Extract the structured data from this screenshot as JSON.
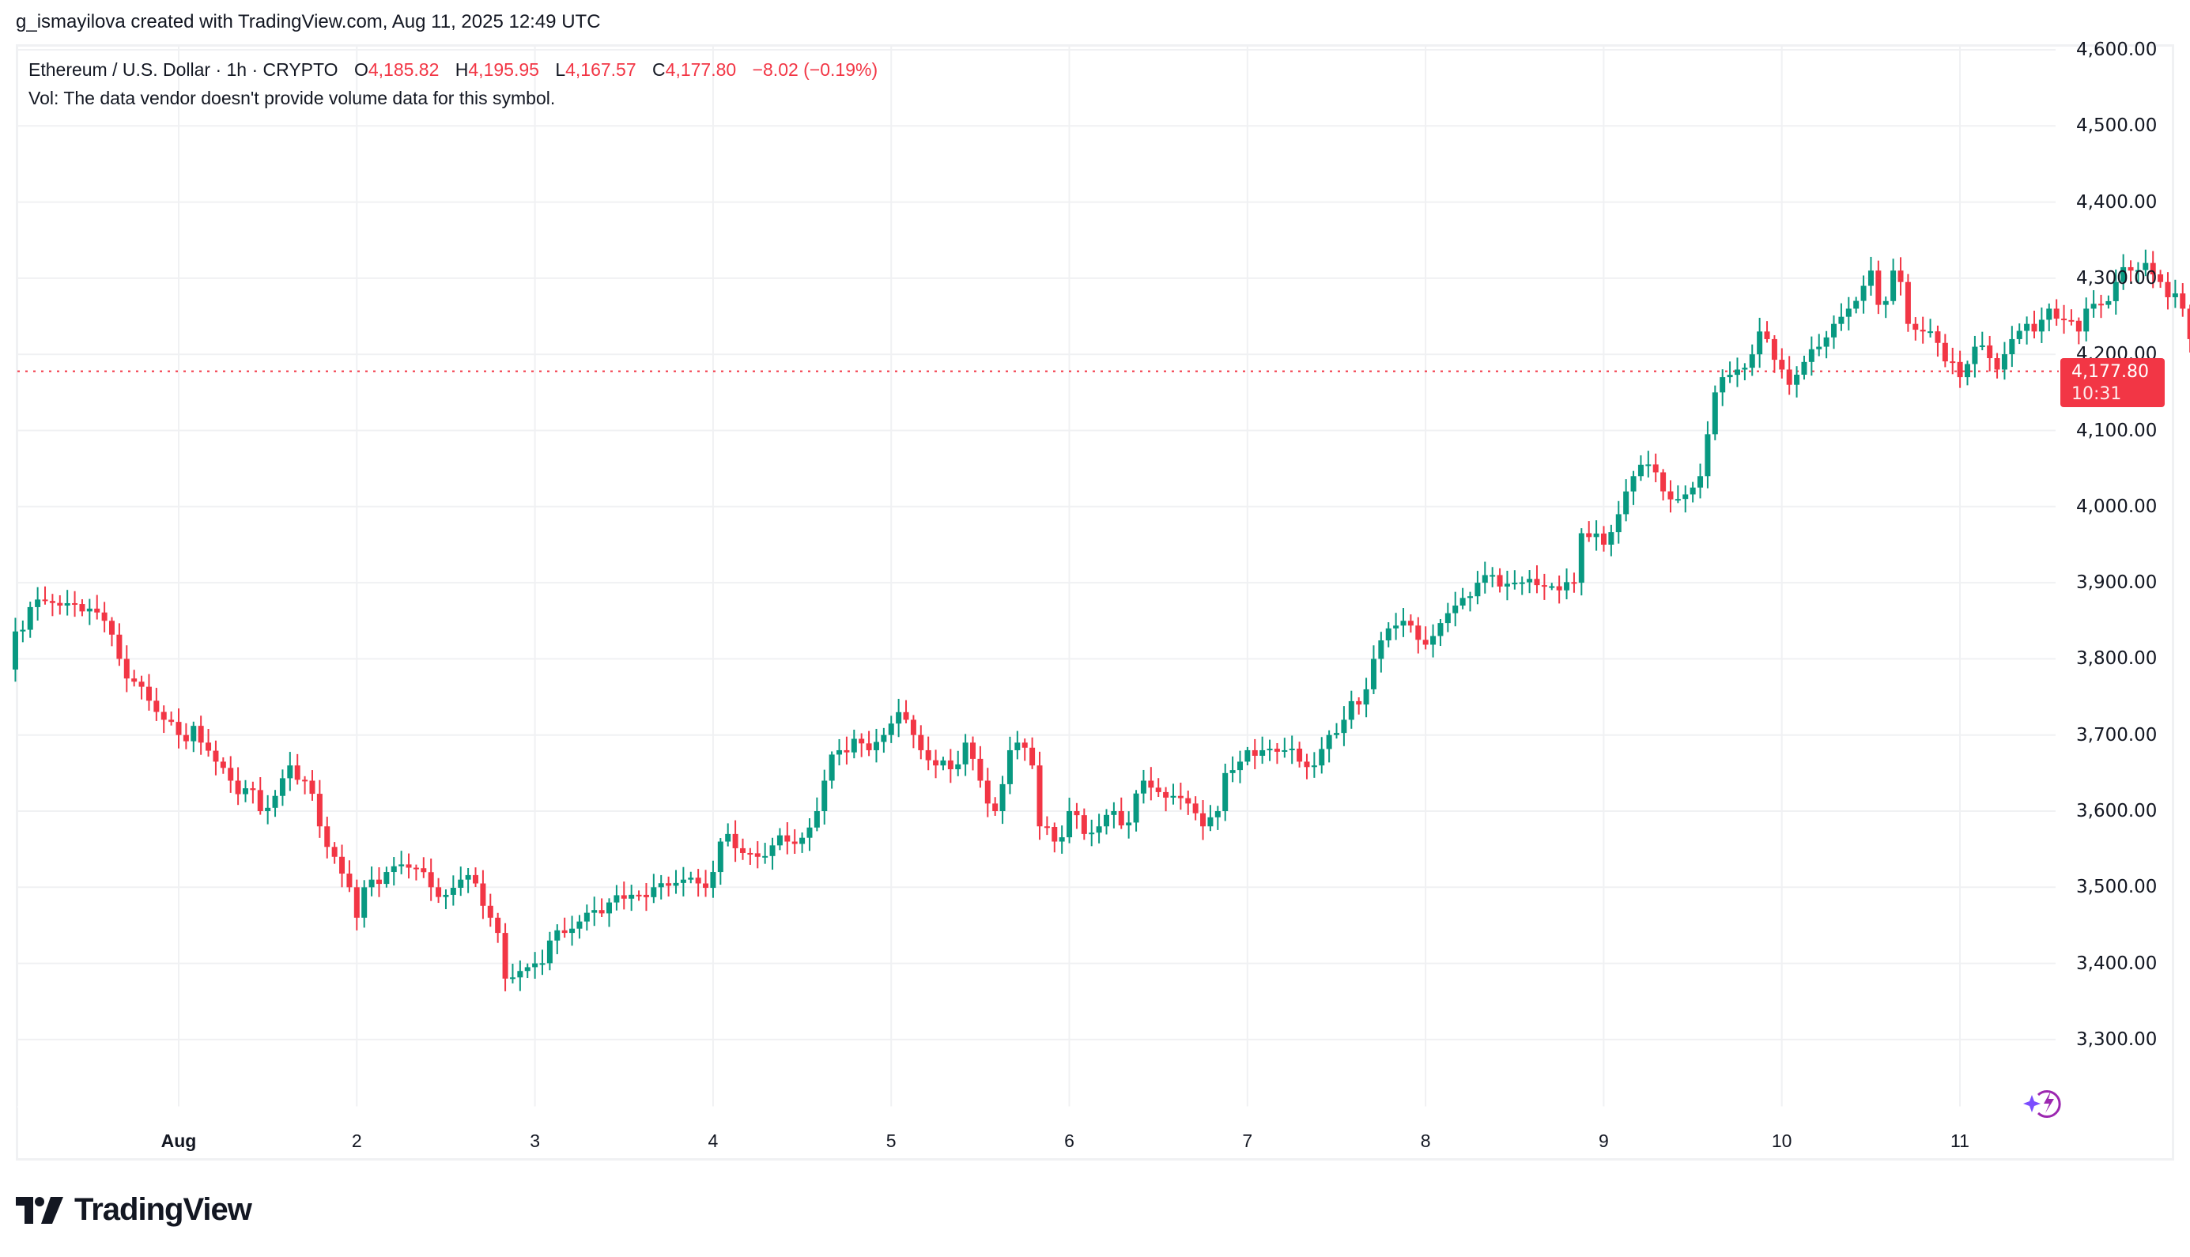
{
  "header": {
    "credit": "g_ismayilova created with TradingView.com, Aug 11, 2025 12:49 UTC"
  },
  "legend": {
    "symbol": "Ethereum / U.S. Dollar · 1h · CRYPTO",
    "open_label": "O",
    "open": "4,185.82",
    "high_label": "H",
    "high": "4,195.95",
    "low_label": "L",
    "low": "4,167.57",
    "close_label": "C",
    "close": "4,177.80",
    "change": "−8.02 (−0.19%)",
    "volume_note": "Vol: The data vendor doesn't provide volume data for this symbol."
  },
  "price_tag": {
    "price": "4,177.80",
    "countdown": "10:31"
  },
  "logo": {
    "name": "TradingView"
  },
  "colors": {
    "up": "#089981",
    "down": "#f23645",
    "grid": "#f0f1f3",
    "text": "#131722",
    "last_price_line": "#f23645"
  },
  "chart_data": {
    "type": "candlestick",
    "title": "Ethereum / U.S. Dollar · 1h · CRYPTO",
    "xlabel": "",
    "ylabel": "",
    "interval": "1h",
    "ylim": [
      3210,
      4655
    ],
    "y_ticks": [
      "4,600.00",
      "4,500.00",
      "4,400.00",
      "4,300.00",
      "4,200.00",
      "4,100.00",
      "4,000.00",
      "3,900.00",
      "3,800.00",
      "3,700.00",
      "3,600.00",
      "3,500.00",
      "3,400.00",
      "3,300.00"
    ],
    "y_tick_values": [
      4600,
      4500,
      4400,
      4300,
      4200,
      4100,
      4000,
      3900,
      3800,
      3700,
      3600,
      3500,
      3400,
      3300
    ],
    "x_ticks": [
      {
        "label": "Aug",
        "day": 1,
        "bold": true
      },
      {
        "label": "2",
        "day": 2
      },
      {
        "label": "3",
        "day": 3
      },
      {
        "label": "4",
        "day": 4
      },
      {
        "label": "5",
        "day": 5
      },
      {
        "label": "6",
        "day": 6
      },
      {
        "label": "7",
        "day": 7
      },
      {
        "label": "8",
        "day": 8
      },
      {
        "label": "9",
        "day": 9
      },
      {
        "label": "10",
        "day": 10
      },
      {
        "label": "11",
        "day": 11
      }
    ],
    "grid": true,
    "last_price": 4177.8,
    "last_candle": {
      "open": 4185.82,
      "high": 4195.95,
      "low": 4167.57,
      "close": 4177.8
    },
    "close_anchors_hours_from_Jul31_00": [
      [
        2,
        3836
      ],
      [
        4,
        3868
      ],
      [
        6,
        3876
      ],
      [
        8,
        3870
      ],
      [
        10,
        3872
      ],
      [
        12,
        3866
      ],
      [
        14,
        3850
      ],
      [
        16,
        3800
      ],
      [
        18,
        3770
      ],
      [
        20,
        3745
      ],
      [
        22,
        3720
      ],
      [
        24,
        3700
      ],
      [
        26,
        3712
      ],
      [
        27,
        3690
      ],
      [
        29,
        3665
      ],
      [
        31,
        3640
      ],
      [
        33,
        3630
      ],
      [
        35,
        3600
      ],
      [
        37,
        3620
      ],
      [
        39,
        3660
      ],
      [
        41,
        3640
      ],
      [
        43,
        3580
      ],
      [
        45,
        3540
      ],
      [
        47,
        3500
      ],
      [
        48,
        3460
      ],
      [
        50,
        3510
      ],
      [
        52,
        3520
      ],
      [
        54,
        3530
      ],
      [
        56,
        3525
      ],
      [
        58,
        3500
      ],
      [
        60,
        3490
      ],
      [
        62,
        3510
      ],
      [
        64,
        3505
      ],
      [
        66,
        3460
      ],
      [
        67,
        3440
      ],
      [
        68,
        3380
      ],
      [
        70,
        3390
      ],
      [
        71,
        3395
      ],
      [
        72,
        3400
      ],
      [
        74,
        3430
      ],
      [
        76,
        3440
      ],
      [
        78,
        3455
      ],
      [
        80,
        3470
      ],
      [
        82,
        3480
      ],
      [
        84,
        3485
      ],
      [
        86,
        3490
      ],
      [
        88,
        3500
      ],
      [
        90,
        3502
      ],
      [
        92,
        3510
      ],
      [
        94,
        3505
      ],
      [
        96,
        3520
      ],
      [
        97,
        3560
      ],
      [
        98,
        3570
      ],
      [
        100,
        3545
      ],
      [
        102,
        3540
      ],
      [
        104,
        3555
      ],
      [
        106,
        3560
      ],
      [
        108,
        3565
      ],
      [
        110,
        3600
      ],
      [
        111,
        3640
      ],
      [
        113,
        3680
      ],
      [
        115,
        3695
      ],
      [
        117,
        3680
      ],
      [
        119,
        3700
      ],
      [
        120,
        3715
      ],
      [
        121,
        3730
      ],
      [
        122,
        3720
      ],
      [
        123,
        3700
      ],
      [
        124,
        3680
      ],
      [
        126,
        3660
      ],
      [
        128,
        3655
      ],
      [
        130,
        3690
      ],
      [
        132,
        3640
      ],
      [
        133,
        3610
      ],
      [
        134,
        3600
      ],
      [
        136,
        3680
      ],
      [
        137,
        3690
      ],
      [
        139,
        3660
      ],
      [
        140,
        3580
      ],
      [
        142,
        3560
      ],
      [
        144,
        3600
      ],
      [
        146,
        3570
      ],
      [
        148,
        3580
      ],
      [
        150,
        3600
      ],
      [
        152,
        3585
      ],
      [
        154,
        3640
      ],
      [
        156,
        3625
      ],
      [
        158,
        3620
      ],
      [
        160,
        3610
      ],
      [
        162,
        3580
      ],
      [
        164,
        3600
      ],
      [
        165,
        3650
      ],
      [
        167,
        3665
      ],
      [
        168,
        3680
      ],
      [
        170,
        3680
      ],
      [
        172,
        3678
      ],
      [
        173,
        3680
      ],
      [
        175,
        3665
      ],
      [
        177,
        3660
      ],
      [
        179,
        3700
      ],
      [
        181,
        3720
      ],
      [
        183,
        3740
      ],
      [
        184,
        3760
      ],
      [
        185,
        3800
      ],
      [
        187,
        3840
      ],
      [
        189,
        3850
      ],
      [
        191,
        3825
      ],
      [
        193,
        3830
      ],
      [
        195,
        3860
      ],
      [
        196,
        3870
      ],
      [
        197,
        3880
      ],
      [
        199,
        3900
      ],
      [
        200,
        3910
      ],
      [
        202,
        3895
      ],
      [
        204,
        3900
      ],
      [
        206,
        3905
      ],
      [
        208,
        3895
      ],
      [
        210,
        3890
      ],
      [
        212,
        3900
      ],
      [
        213,
        3965
      ],
      [
        214,
        3960
      ],
      [
        216,
        3950
      ],
      [
        218,
        3990
      ],
      [
        220,
        4040
      ],
      [
        221,
        4055
      ],
      [
        223,
        4045
      ],
      [
        224,
        4020
      ],
      [
        226,
        4010
      ],
      [
        228,
        4025
      ],
      [
        229,
        4040
      ],
      [
        230,
        4095
      ],
      [
        231,
        4150
      ],
      [
        232,
        4170
      ],
      [
        234,
        4180
      ],
      [
        236,
        4200
      ],
      [
        237,
        4230
      ],
      [
        238,
        4220
      ],
      [
        240,
        4180
      ],
      [
        241,
        4160
      ],
      [
        243,
        4190
      ],
      [
        245,
        4210
      ],
      [
        247,
        4240
      ],
      [
        249,
        4260
      ],
      [
        251,
        4290
      ],
      [
        252,
        4310
      ],
      [
        253,
        4265
      ],
      [
        254,
        4270
      ],
      [
        255,
        4310
      ],
      [
        256,
        4295
      ],
      [
        257,
        4240
      ],
      [
        259,
        4230
      ],
      [
        261,
        4215
      ],
      [
        263,
        4190
      ],
      [
        264,
        4170
      ],
      [
        266,
        4210
      ],
      [
        268,
        4195
      ],
      [
        269,
        4180
      ],
      [
        271,
        4220
      ],
      [
        273,
        4240
      ],
      [
        274,
        4230
      ],
      [
        276,
        4260
      ],
      [
        278,
        4245
      ],
      [
        280,
        4230
      ],
      [
        281,
        4260
      ],
      [
        283,
        4265
      ],
      [
        285,
        4295
      ],
      [
        287,
        4310
      ],
      [
        289,
        4320
      ],
      [
        290,
        4305
      ],
      [
        291,
        4295
      ],
      [
        292,
        4275
      ],
      [
        293,
        4280
      ],
      [
        294,
        4260
      ],
      [
        295,
        4220
      ],
      [
        296,
        4186
      ],
      [
        297,
        4177.8
      ]
    ]
  }
}
